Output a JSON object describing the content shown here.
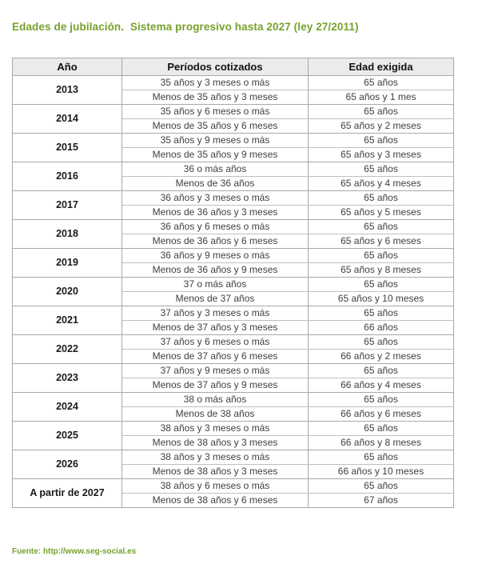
{
  "title": "Edades de jubilación.  Sistema progresivo hasta 2027 (ley 27/2011)",
  "source": "Fuente: http://www.seg-social.es",
  "colors": {
    "accent_green": "#76a22b",
    "header_background": "#ebebeb",
    "table_border": "#a8a8a8",
    "body_text": "#404040"
  },
  "chart_data": {
    "type": "table",
    "title": "Edades de jubilación. Sistema progresivo hasta 2027 (ley 27/2011)",
    "columns": [
      "Año",
      "Períodos cotizados",
      "Edad exigida"
    ],
    "groups": [
      {
        "year": "2013",
        "rows": [
          {
            "period": "35 años y 3 meses o más",
            "age": "65 años"
          },
          {
            "period": "Menos de 35 años y 3 meses",
            "age": "65 años y 1 mes"
          }
        ]
      },
      {
        "year": "2014",
        "rows": [
          {
            "period": "35 años y 6 meses o más",
            "age": "65 años"
          },
          {
            "period": "Menos de 35 años y 6 meses",
            "age": "65 años y 2 meses"
          }
        ]
      },
      {
        "year": "2015",
        "rows": [
          {
            "period": "35 años y 9 meses o más",
            "age": "65 años"
          },
          {
            "period": "Menos de 35 años y 9 meses",
            "age": "65 años y 3 meses"
          }
        ]
      },
      {
        "year": "2016",
        "rows": [
          {
            "period": "36 o más años",
            "age": "65 años"
          },
          {
            "period": "Menos de 36 años",
            "age": "65 años y 4 meses"
          }
        ]
      },
      {
        "year": "2017",
        "rows": [
          {
            "period": "36 años y 3 meses o más",
            "age": "65 años"
          },
          {
            "period": "Menos de 36 años y 3 meses",
            "age": "65 años y 5 meses"
          }
        ]
      },
      {
        "year": "2018",
        "rows": [
          {
            "period": "36 años y 6 meses o más",
            "age": "65 años"
          },
          {
            "period": "Menos de 36 años y 6 meses",
            "age": "65 años y 6 meses"
          }
        ]
      },
      {
        "year": "2019",
        "rows": [
          {
            "period": "36 años y 9 meses o más",
            "age": "65 años"
          },
          {
            "period": "Menos de 36 años y 9 meses",
            "age": "65 años y 8 meses"
          }
        ]
      },
      {
        "year": "2020",
        "rows": [
          {
            "period": "37 o más años",
            "age": "65 años"
          },
          {
            "period": "Menos de 37 años",
            "age": "65 años y 10 meses"
          }
        ]
      },
      {
        "year": "2021",
        "rows": [
          {
            "period": "37 años y 3 meses o más",
            "age": "65 años"
          },
          {
            "period": "Menos de 37 años y 3 meses",
            "age": "66 años"
          }
        ]
      },
      {
        "year": "2022",
        "rows": [
          {
            "period": "37 años y 6 meses o más",
            "age": "65 años"
          },
          {
            "period": "Menos de 37 años y 6 meses",
            "age": "66 años y 2 meses"
          }
        ]
      },
      {
        "year": "2023",
        "rows": [
          {
            "period": "37 años y 9 meses o más",
            "age": "65 años"
          },
          {
            "period": "Menos de 37 años y 9 meses",
            "age": "66 años y 4 meses"
          }
        ]
      },
      {
        "year": "2024",
        "rows": [
          {
            "period": "38 o más años",
            "age": "65 años"
          },
          {
            "period": "Menos de 38 años",
            "age": "66 años y 6 meses"
          }
        ]
      },
      {
        "year": "2025",
        "rows": [
          {
            "period": "38 años y 3 meses o más",
            "age": "65 años"
          },
          {
            "period": "Menos de 38 años y 3 meses",
            "age": "66 años y 8 meses"
          }
        ]
      },
      {
        "year": "2026",
        "rows": [
          {
            "period": "38 años y 3 meses o más",
            "age": "65 años"
          },
          {
            "period": "Menos de 38 años y 3 meses",
            "age": "66 años y 10 meses"
          }
        ]
      },
      {
        "year": "A partir de 2027",
        "rows": [
          {
            "period": "38 años y 6 meses o más",
            "age": "65 años"
          },
          {
            "period": "Menos de 38 años y 6 meses",
            "age": "67 años"
          }
        ]
      }
    ]
  }
}
